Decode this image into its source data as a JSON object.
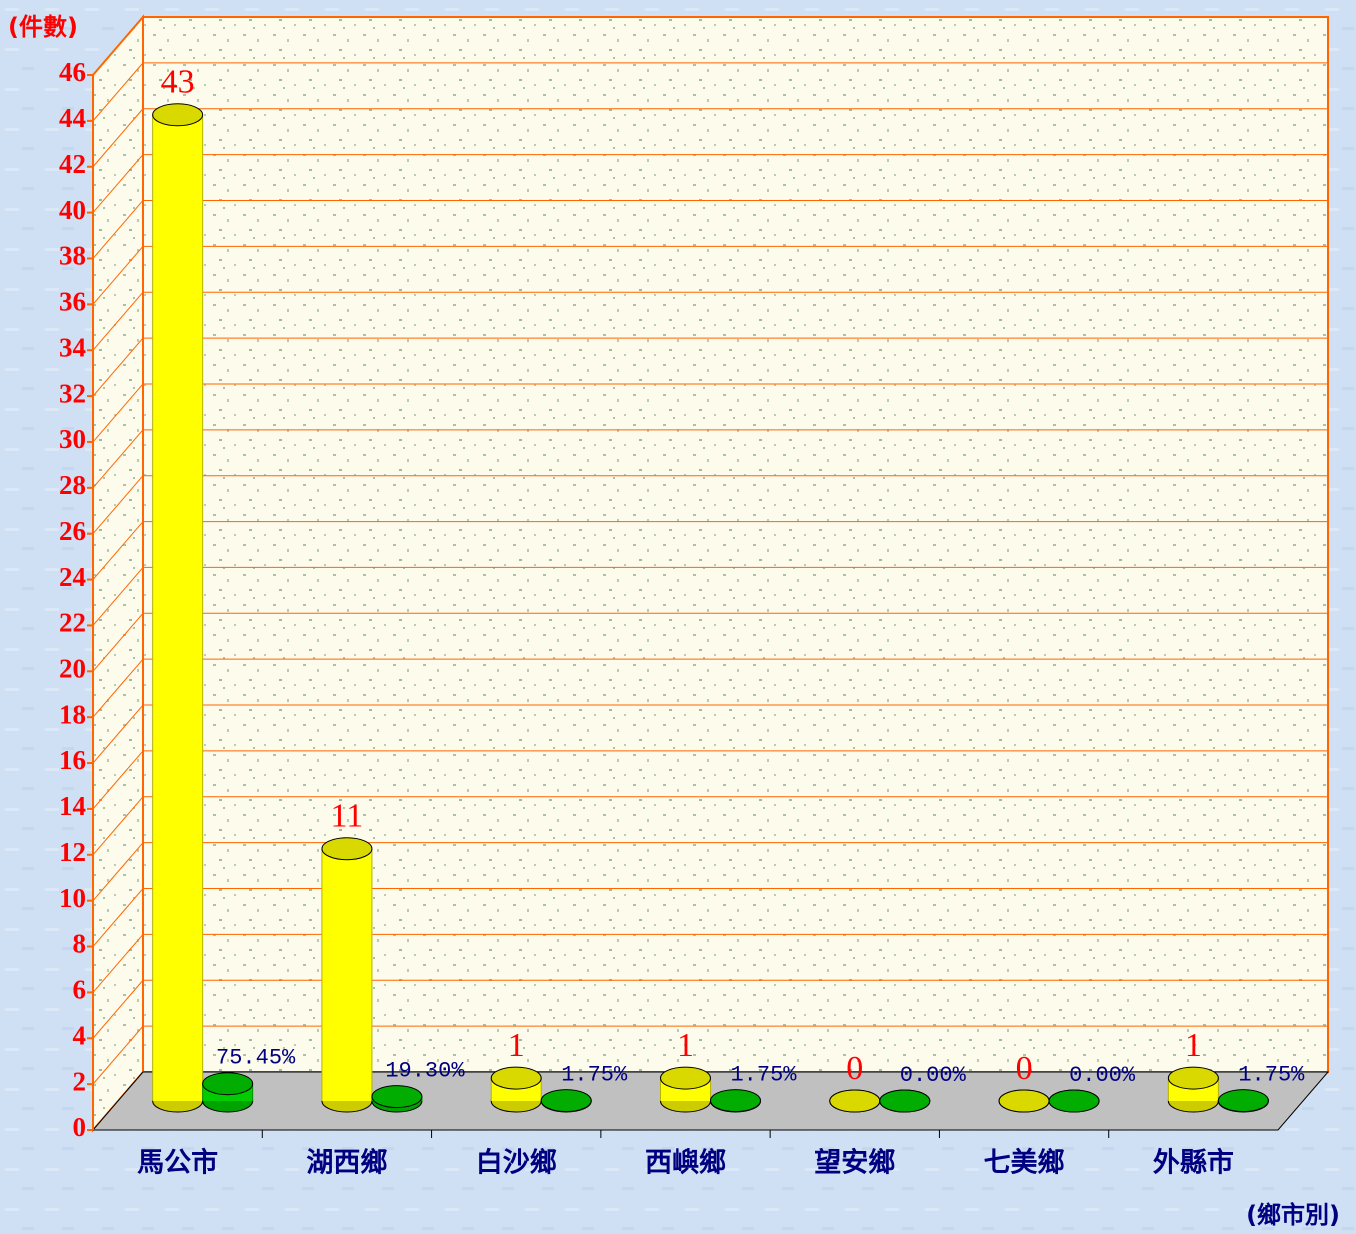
{
  "chart_data": {
    "type": "bar",
    "ylabel": "(件數)",
    "xlabel": "(鄉市別)",
    "categories": [
      "馬公市",
      "湖西鄉",
      "白沙鄉",
      "西嶼鄉",
      "望安鄉",
      "七美鄉",
      "外縣市"
    ],
    "series": [
      {
        "color": "#ffff00",
        "values": [
          43,
          11,
          1,
          1,
          0,
          0,
          1
        ]
      },
      {
        "color": "#00cc00",
        "values": [
          0.7545,
          0.193,
          0.0175,
          0.0175,
          0,
          0,
          0.0175
        ],
        "value_labels": [
          "75.45%",
          "19.30%",
          "1.75%",
          "1.75%",
          "0.00%",
          "0.00%",
          "1.75%"
        ]
      }
    ],
    "ylim": [
      0,
      46
    ],
    "yticks": [
      0,
      2,
      4,
      6,
      8,
      10,
      12,
      14,
      16,
      18,
      20,
      22,
      24,
      26,
      28,
      30,
      32,
      34,
      36,
      38,
      40,
      42,
      44,
      46
    ],
    "grid": true
  }
}
